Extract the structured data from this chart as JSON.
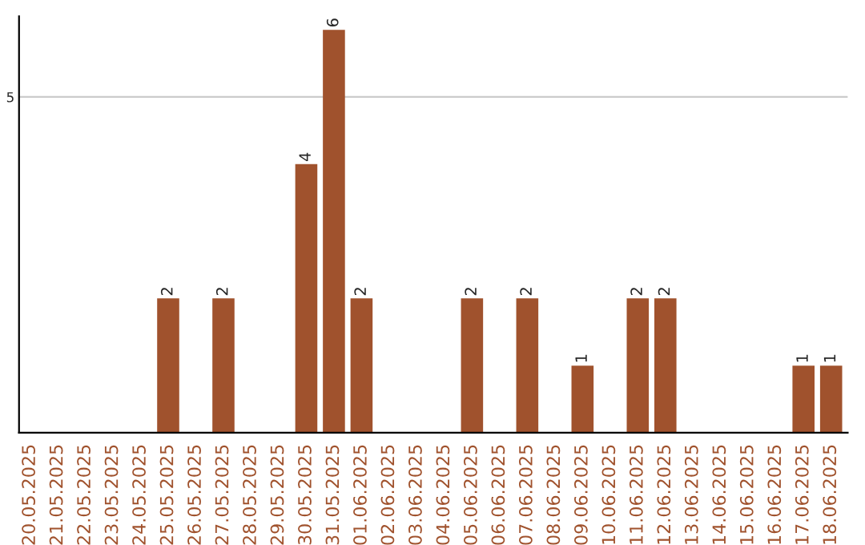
{
  "chart_data": {
    "type": "bar",
    "categories": [
      "20.05.2025",
      "21.05.2025",
      "22.05.2025",
      "23.05.2025",
      "24.05.2025",
      "25.05.2025",
      "26.05.2025",
      "27.05.2025",
      "28.05.2025",
      "29.05.2025",
      "30.05.2025",
      "31.05.2025",
      "01.06.2025",
      "02.06.2025",
      "03.06.2025",
      "04.06.2025",
      "05.06.2025",
      "06.06.2025",
      "07.06.2025",
      "08.06.2025",
      "09.06.2025",
      "10.06.2025",
      "11.06.2025",
      "12.06.2025",
      "13.06.2025",
      "14.06.2025",
      "15.06.2025",
      "16.06.2025",
      "17.06.2025",
      "18.06.2025"
    ],
    "values": [
      0,
      0,
      0,
      0,
      0,
      2,
      0,
      2,
      0,
      0,
      4,
      6,
      2,
      0,
      0,
      0,
      2,
      0,
      2,
      0,
      1,
      0,
      2,
      2,
      0,
      0,
      0,
      0,
      1,
      1
    ],
    "value_labels": [
      null,
      null,
      null,
      null,
      null,
      "2",
      null,
      "2",
      null,
      null,
      "4",
      "6",
      "2",
      null,
      null,
      null,
      "2",
      null,
      "2",
      null,
      "1",
      null,
      "2",
      "2",
      null,
      null,
      null,
      null,
      "1",
      "1"
    ],
    "color": "#a0522d",
    "ylim": [
      0,
      6.2
    ],
    "yticks": [
      5
    ],
    "grid": "y",
    "legend": false
  }
}
